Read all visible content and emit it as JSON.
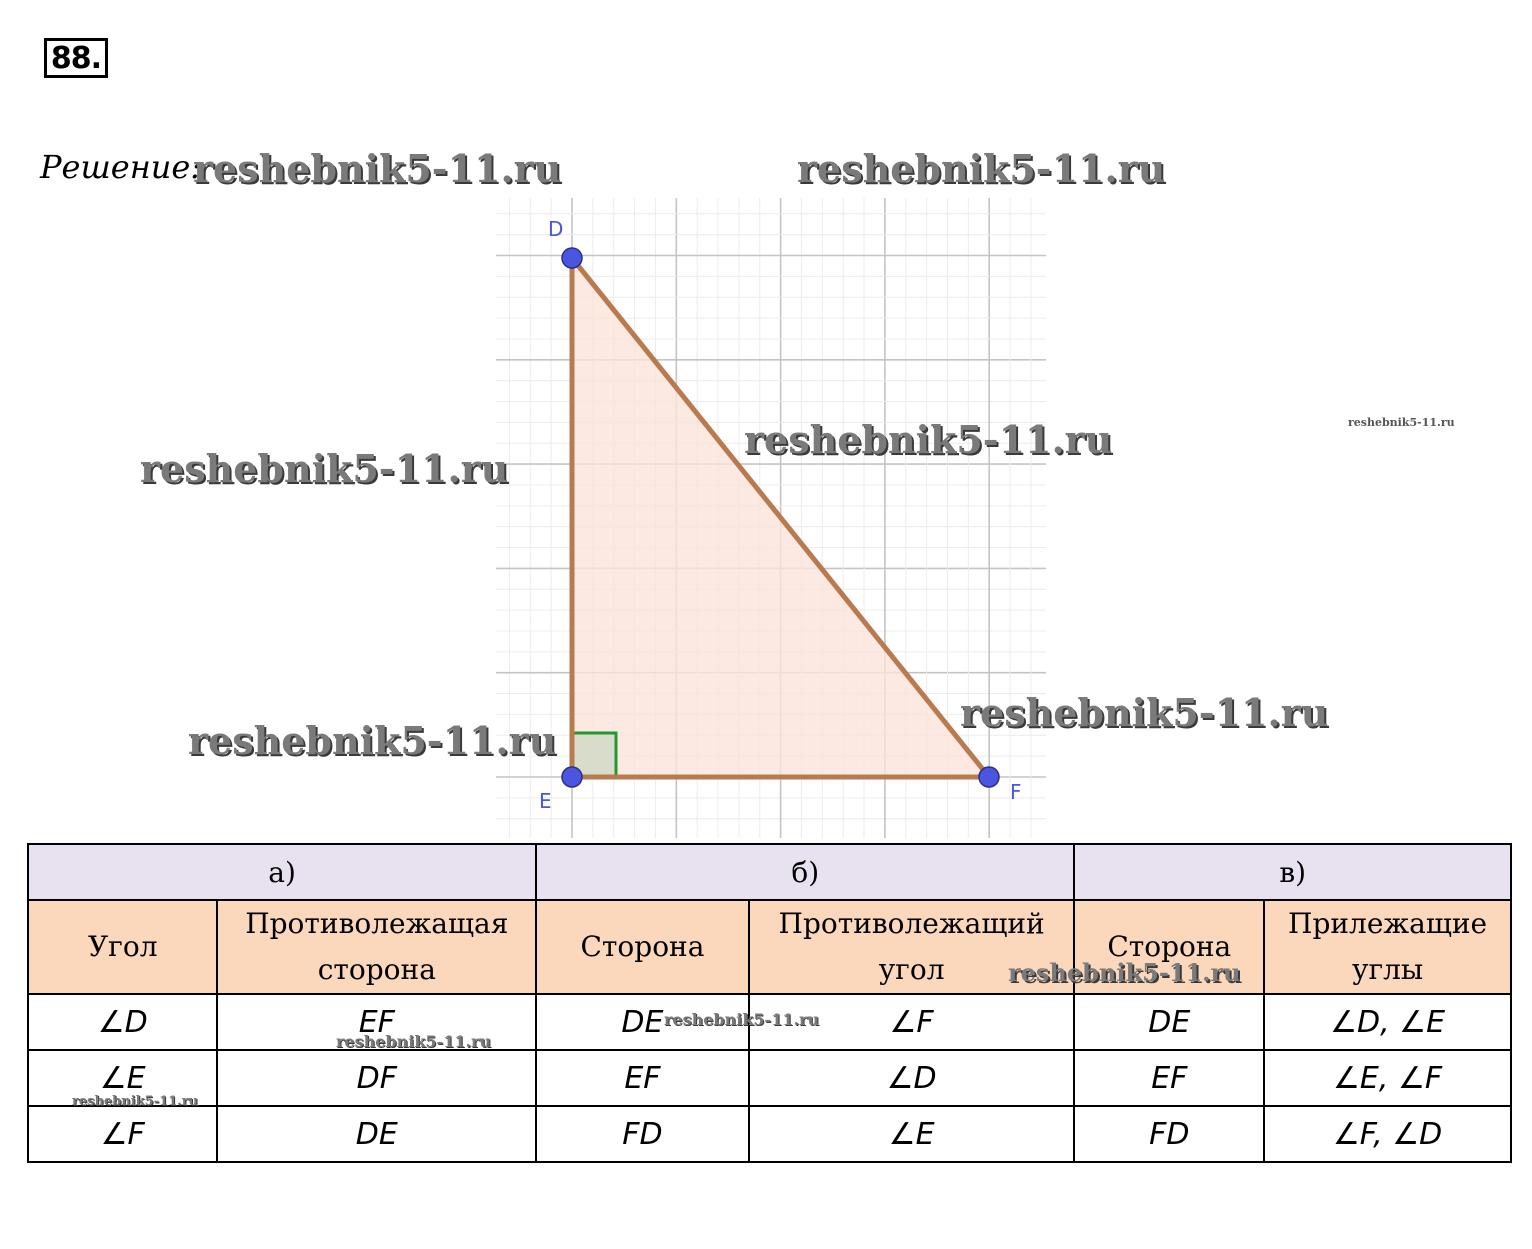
{
  "problem_number": "88.",
  "solution_label": "Решение:",
  "watermark": "reshebnik5-11.ru",
  "diagram": {
    "labels": {
      "d": "D",
      "e": "E",
      "f": "F"
    },
    "colors": {
      "fill": "#fbe3d9",
      "stroke": "#b97a4f",
      "point": "#4a55e0",
      "right_angle": "#1f9a2e",
      "label": "#4a55e0",
      "grid": "#c9c9c9"
    }
  },
  "table": {
    "groups": [
      "а)",
      "б)",
      "в)"
    ],
    "headers": [
      [
        "Угол"
      ],
      [
        "Противолежащая",
        "сторона"
      ],
      [
        "Сторона"
      ],
      [
        "Противолежащий",
        "угол"
      ],
      [
        "Сторона"
      ],
      [
        "Прилежащие",
        "углы"
      ]
    ],
    "rows": [
      [
        "∠D",
        "EF",
        "DE",
        "∠F",
        "DE",
        "∠D, ∠E"
      ],
      [
        "∠E",
        "DF",
        "EF",
        "∠D",
        "EF",
        "∠E, ∠F"
      ],
      [
        "∠F",
        "DE",
        "FD",
        "∠E",
        "FD",
        "∠F, ∠D"
      ]
    ]
  }
}
